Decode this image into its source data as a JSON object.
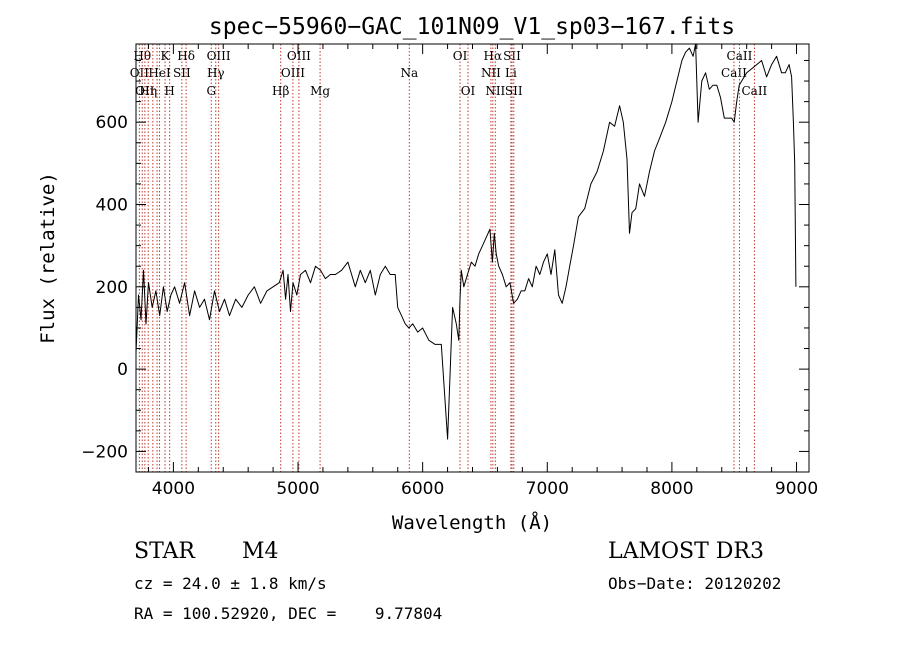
{
  "chart_data": {
    "type": "line",
    "title": "spec−55960−GAC_101N09_V1_sp03−167.fits",
    "xlabel": "Wavelength (Å)",
    "ylabel": "Flux (relative)",
    "xlim": [
      3700,
      9100
    ],
    "ylim": [
      -250,
      790
    ],
    "xticks": [
      {
        "v": 4000,
        "label": "4000"
      },
      {
        "v": 5000,
        "label": "5000"
      },
      {
        "v": 6000,
        "label": "6000"
      },
      {
        "v": 7000,
        "label": "7000"
      },
      {
        "v": 8000,
        "label": "8000"
      },
      {
        "v": 9000,
        "label": "9000"
      }
    ],
    "yticks": [
      {
        "v": -200,
        "label": "−200"
      },
      {
        "v": 0,
        "label": "0"
      },
      {
        "v": 200,
        "label": "200"
      },
      {
        "v": 400,
        "label": "400"
      },
      {
        "v": 600,
        "label": "600"
      }
    ],
    "grid": false,
    "series": [
      {
        "x": [
          3700,
          3720,
          3740,
          3760,
          3780,
          3800,
          3830,
          3860,
          3890,
          3920,
          3950,
          3980,
          4010,
          4050,
          4090,
          4130,
          4170,
          4210,
          4250,
          4290,
          4330,
          4370,
          4410,
          4450,
          4500,
          4550,
          4600,
          4650,
          4700,
          4750,
          4800,
          4850,
          4880,
          4900,
          4920,
          4940,
          4960,
          4990,
          5020,
          5060,
          5100,
          5140,
          5180,
          5220,
          5260,
          5300,
          5350,
          5400,
          5430,
          5460,
          5500,
          5540,
          5580,
          5620,
          5660,
          5700,
          5740,
          5780,
          5800,
          5830,
          5860,
          5890,
          5920,
          5960,
          6000,
          6050,
          6100,
          6150,
          6200,
          6240,
          6270,
          6290,
          6300,
          6310,
          6330,
          6360,
          6390,
          6420,
          6450,
          6480,
          6510,
          6540,
          6560,
          6575,
          6590,
          6610,
          6640,
          6670,
          6700,
          6730,
          6760,
          6790,
          6820,
          6850,
          6880,
          6910,
          6940,
          6970,
          7000,
          7030,
          7060,
          7090,
          7120,
          7150,
          7180,
          7210,
          7250,
          7300,
          7350,
          7400,
          7450,
          7500,
          7540,
          7580,
          7610,
          7640,
          7660,
          7680,
          7710,
          7740,
          7780,
          7820,
          7860,
          7900,
          7950,
          8000,
          8040,
          8080,
          8110,
          8140,
          8170,
          8190,
          8210,
          8240,
          8270,
          8300,
          8330,
          8360,
          8390,
          8420,
          8450,
          8480,
          8500,
          8520,
          8540,
          8560,
          8600,
          8640,
          8680,
          8720,
          8760,
          8800,
          8840,
          8880,
          8910,
          8940,
          8960,
          8975,
          8985,
          8995
        ],
        "y": [
          40,
          180,
          120,
          240,
          110,
          210,
          150,
          190,
          130,
          200,
          140,
          180,
          200,
          160,
          210,
          130,
          190,
          150,
          170,
          120,
          190,
          140,
          170,
          130,
          170,
          150,
          180,
          200,
          160,
          190,
          200,
          210,
          240,
          170,
          230,
          140,
          210,
          180,
          230,
          240,
          210,
          250,
          240,
          220,
          230,
          230,
          240,
          260,
          230,
          200,
          240,
          210,
          240,
          180,
          230,
          250,
          230,
          230,
          150,
          130,
          110,
          100,
          110,
          90,
          100,
          70,
          60,
          60,
          -170,
          150,
          110,
          70,
          170,
          240,
          200,
          230,
          260,
          250,
          280,
          300,
          320,
          340,
          260,
          330,
          280,
          250,
          230,
          200,
          210,
          160,
          170,
          190,
          190,
          220,
          200,
          250,
          230,
          260,
          280,
          230,
          290,
          180,
          160,
          200,
          250,
          300,
          370,
          390,
          450,
          480,
          530,
          600,
          590,
          640,
          600,
          510,
          330,
          380,
          390,
          450,
          420,
          480,
          530,
          560,
          600,
          650,
          700,
          750,
          770,
          780,
          760,
          790,
          600,
          700,
          720,
          680,
          690,
          690,
          660,
          610,
          610,
          610,
          600,
          650,
          690,
          700,
          720,
          730,
          740,
          750,
          710,
          740,
          760,
          720,
          720,
          740,
          710,
          600,
          500,
          200
        ],
        "color": "#000000"
      }
    ],
    "lines": [
      {
        "wl": 3727,
        "label": "OII",
        "row": 1
      },
      {
        "wl": 3750,
        "label": "Hθ",
        "row": 0
      },
      {
        "wl": 3771,
        "label": "OII",
        "row": 2
      },
      {
        "wl": 3798,
        "label": "Hη",
        "row": 2
      },
      {
        "wl": 3835,
        "label": "",
        "row": 3
      },
      {
        "wl": 3869,
        "label": "",
        "row": 3
      },
      {
        "wl": 3889,
        "label": "HeI",
        "row": 1
      },
      {
        "wl": 3933,
        "label": "K",
        "row": 0
      },
      {
        "wl": 3970,
        "label": "H",
        "row": 2
      },
      {
        "wl": 4068,
        "label": "SII",
        "row": 1
      },
      {
        "wl": 4102,
        "label": "Hδ",
        "row": 0
      },
      {
        "wl": 4304,
        "label": "G",
        "row": 2
      },
      {
        "wl": 4340,
        "label": "Hγ",
        "row": 1
      },
      {
        "wl": 4363,
        "label": "OIII",
        "row": 0
      },
      {
        "wl": 4861,
        "label": "Hβ",
        "row": 2
      },
      {
        "wl": 4959,
        "label": "OIII",
        "row": 1
      },
      {
        "wl": 5007,
        "label": "OIII",
        "row": 0
      },
      {
        "wl": 5177,
        "label": "Mg",
        "row": 2
      },
      {
        "wl": 5893,
        "label": "Na",
        "row": 1
      },
      {
        "wl": 6300,
        "label": "OI",
        "row": 0
      },
      {
        "wl": 6364,
        "label": "OI",
        "row": 2
      },
      {
        "wl": 6548,
        "label": "NII",
        "row": 1
      },
      {
        "wl": 6563,
        "label": "Hα",
        "row": 0
      },
      {
        "wl": 6583,
        "label": "NII",
        "row": 2
      },
      {
        "wl": 6708,
        "label": "Li",
        "row": 1
      },
      {
        "wl": 6717,
        "label": "SII",
        "row": 0
      },
      {
        "wl": 6731,
        "label": "SII",
        "row": 2
      },
      {
        "wl": 8498,
        "label": "CaII",
        "row": 1
      },
      {
        "wl": 8542,
        "label": "CaII",
        "row": 0
      },
      {
        "wl": 8662,
        "label": "CaII",
        "row": 2
      }
    ]
  },
  "info": {
    "class": "STAR",
    "subclass": "M4",
    "survey": "LAMOST DR3",
    "cz": "cz = 24.0 ± 1.8 km/s",
    "obs_date": "Obs−Date: 20120202",
    "coords": "RA = 100.52920, DEC =    9.77804"
  }
}
